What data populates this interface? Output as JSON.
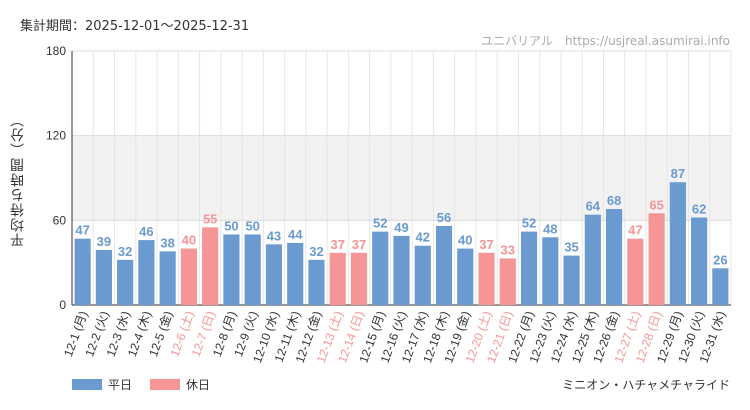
{
  "period_label": "集計期間：2025-12-01〜2025-12-31",
  "source_label": "ユニバリアル　https://usjreal.asumirai.info",
  "attraction_name": "ミニオン・ハチャメチャライド",
  "colors": {
    "weekday": "#6a9ad0",
    "holiday": "#f59595",
    "band": "#f2f2f2",
    "grid": "#e6e6e6"
  },
  "chart_data": {
    "type": "bar",
    "title": "",
    "xlabel": "",
    "ylabel": "平均待ち時間（分）",
    "ylim": [
      0,
      180
    ],
    "yticks": [
      0,
      60,
      120,
      180
    ],
    "band": [
      60,
      120
    ],
    "legend": [
      {
        "name": "平日",
        "key": "weekday"
      },
      {
        "name": "休日",
        "key": "holiday"
      }
    ],
    "categories": [
      "12-1 (月)",
      "12-2 (火)",
      "12-3 (水)",
      "12-4 (木)",
      "12-5 (金)",
      "12-6 (土)",
      "12-7 (日)",
      "12-8 (月)",
      "12-9 (火)",
      "12-10 (水)",
      "12-11 (木)",
      "12-12 (金)",
      "12-13 (土)",
      "12-14 (日)",
      "12-15 (月)",
      "12-16 (火)",
      "12-17 (水)",
      "12-18 (木)",
      "12-19 (金)",
      "12-20 (土)",
      "12-21 (日)",
      "12-22 (月)",
      "12-23 (火)",
      "12-24 (水)",
      "12-25 (木)",
      "12-26 (金)",
      "12-27 (土)",
      "12-28 (日)",
      "12-29 (月)",
      "12-30 (火)",
      "12-31 (水)"
    ],
    "values": [
      47,
      39,
      32,
      46,
      38,
      40,
      55,
      50,
      50,
      43,
      44,
      32,
      37,
      37,
      52,
      49,
      42,
      56,
      40,
      37,
      33,
      52,
      48,
      35,
      64,
      68,
      47,
      65,
      87,
      62,
      26
    ],
    "day_type": [
      "weekday",
      "weekday",
      "weekday",
      "weekday",
      "weekday",
      "holiday",
      "holiday",
      "weekday",
      "weekday",
      "weekday",
      "weekday",
      "weekday",
      "holiday",
      "holiday",
      "weekday",
      "weekday",
      "weekday",
      "weekday",
      "weekday",
      "holiday",
      "holiday",
      "weekday",
      "weekday",
      "weekday",
      "weekday",
      "weekday",
      "holiday",
      "holiday",
      "weekday",
      "weekday",
      "weekday"
    ]
  }
}
